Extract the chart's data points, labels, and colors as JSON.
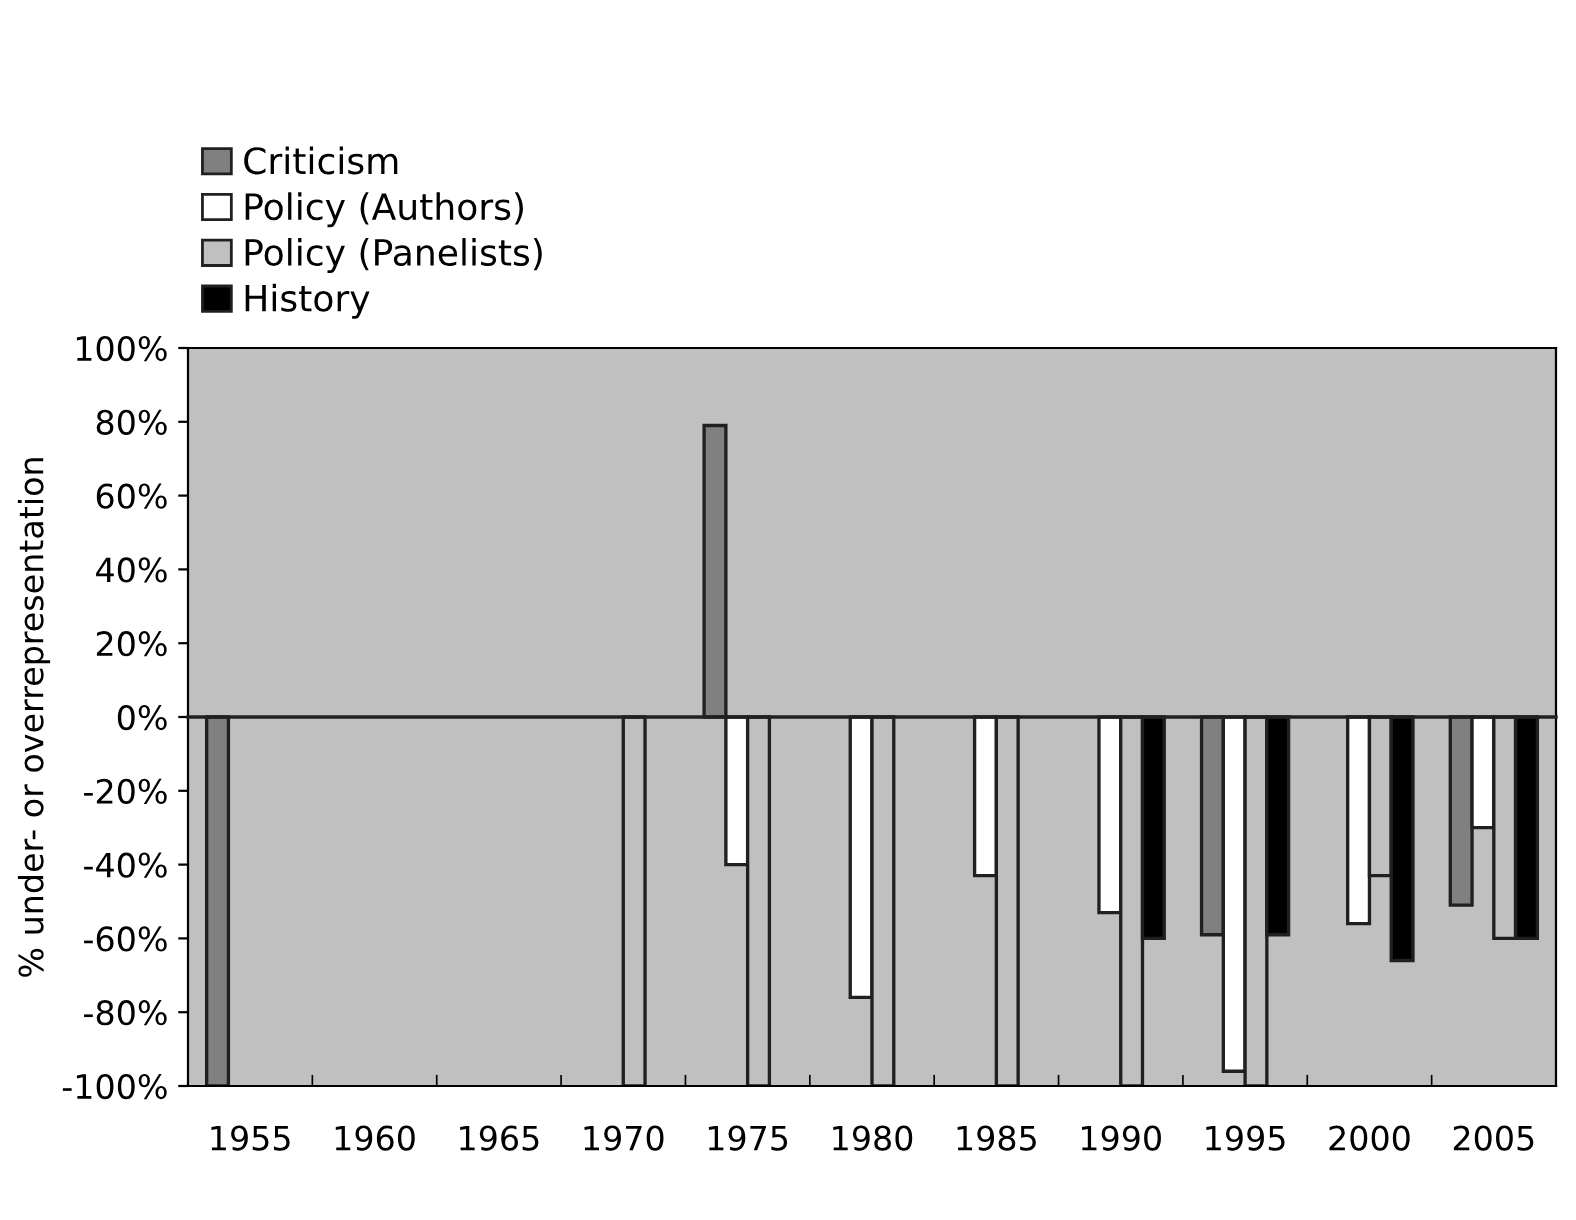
{
  "chart_data": {
    "type": "bar",
    "ylabel": "% under- or overrepresentation",
    "categories": [
      "1955",
      "1960",
      "1965",
      "1970",
      "1975",
      "1980",
      "1985",
      "1990",
      "1995",
      "2000",
      "2005"
    ],
    "series": [
      {
        "name": "Criticism",
        "color": "#808080",
        "values": [
          -100,
          null,
          null,
          null,
          79,
          null,
          null,
          null,
          -59,
          null,
          -51
        ]
      },
      {
        "name": "Policy (Authors)",
        "color": "#ffffff",
        "values": [
          null,
          null,
          null,
          null,
          -40,
          -76,
          -43,
          -53,
          -96,
          -56,
          -30
        ]
      },
      {
        "name": "Policy (Panelists)",
        "color": "#c0c0c0",
        "values": [
          null,
          null,
          null,
          -100,
          -100,
          -100,
          -100,
          -100,
          -100,
          -43,
          -60
        ]
      },
      {
        "name": "History",
        "color": "#000000",
        "values": [
          null,
          null,
          null,
          null,
          null,
          null,
          null,
          -60,
          -59,
          -66,
          -60
        ]
      }
    ],
    "ylim": [
      -100,
      100
    ],
    "yticks": [
      {
        "value": -100,
        "label": "-100%"
      },
      {
        "value": -80,
        "label": "-80%"
      },
      {
        "value": -60,
        "label": "-60%"
      },
      {
        "value": -40,
        "label": "-40%"
      },
      {
        "value": -20,
        "label": "-20%"
      },
      {
        "value": 0,
        "label": "0%"
      },
      {
        "value": 20,
        "label": "20%"
      },
      {
        "value": 40,
        "label": "40%"
      },
      {
        "value": 60,
        "label": "60%"
      },
      {
        "value": 80,
        "label": "80%"
      },
      {
        "value": 100,
        "label": "100%"
      }
    ],
    "legend": "top left"
  }
}
